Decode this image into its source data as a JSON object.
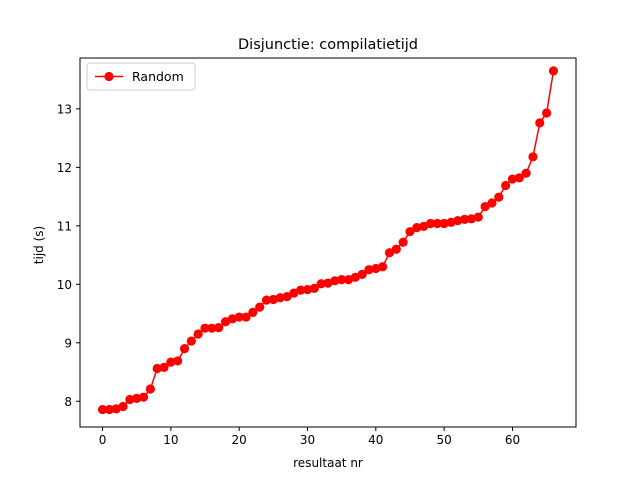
{
  "chart_data": {
    "type": "line",
    "title": "Disjunctie: compilatietijd",
    "xlabel": "resultaat nr",
    "ylabel": "tijd (s)",
    "xlim": [
      -3.3,
      69.3
    ],
    "ylim": [
      7.56,
      13.87
    ],
    "xticks": [
      0,
      10,
      20,
      30,
      40,
      50,
      60
    ],
    "yticks": [
      8,
      9,
      10,
      11,
      12,
      13
    ],
    "grid": false,
    "legend": "top-left",
    "series": [
      {
        "name": "Random",
        "color": "#ff0000",
        "marker": "circle",
        "x": [
          0,
          1,
          2,
          3,
          4,
          5,
          6,
          7,
          8,
          9,
          10,
          11,
          12,
          13,
          14,
          15,
          16,
          17,
          18,
          19,
          20,
          21,
          22,
          23,
          24,
          25,
          26,
          27,
          28,
          29,
          30,
          31,
          32,
          33,
          34,
          35,
          36,
          37,
          38,
          39,
          40,
          41,
          42,
          43,
          44,
          45,
          46,
          47,
          48,
          49,
          50,
          51,
          52,
          53,
          54,
          55,
          56,
          57,
          58,
          59,
          60,
          61,
          62,
          63,
          64,
          65,
          66
        ],
        "values": [
          7.86,
          7.86,
          7.87,
          7.91,
          8.03,
          8.05,
          8.07,
          8.21,
          8.56,
          8.58,
          8.67,
          8.69,
          8.9,
          9.03,
          9.15,
          9.25,
          9.25,
          9.26,
          9.36,
          9.41,
          9.44,
          9.44,
          9.52,
          9.61,
          9.73,
          9.74,
          9.77,
          9.79,
          9.85,
          9.9,
          9.91,
          9.93,
          10.01,
          10.02,
          10.06,
          10.08,
          10.08,
          10.12,
          10.17,
          10.25,
          10.27,
          10.3,
          10.54,
          10.6,
          10.72,
          10.9,
          10.97,
          10.99,
          11.04,
          11.04,
          11.04,
          11.06,
          11.09,
          11.11,
          11.12,
          11.15,
          11.33,
          11.39,
          11.49,
          11.69,
          11.8,
          11.82,
          11.9,
          12.18,
          12.76,
          12.93,
          13.65
        ]
      }
    ]
  }
}
